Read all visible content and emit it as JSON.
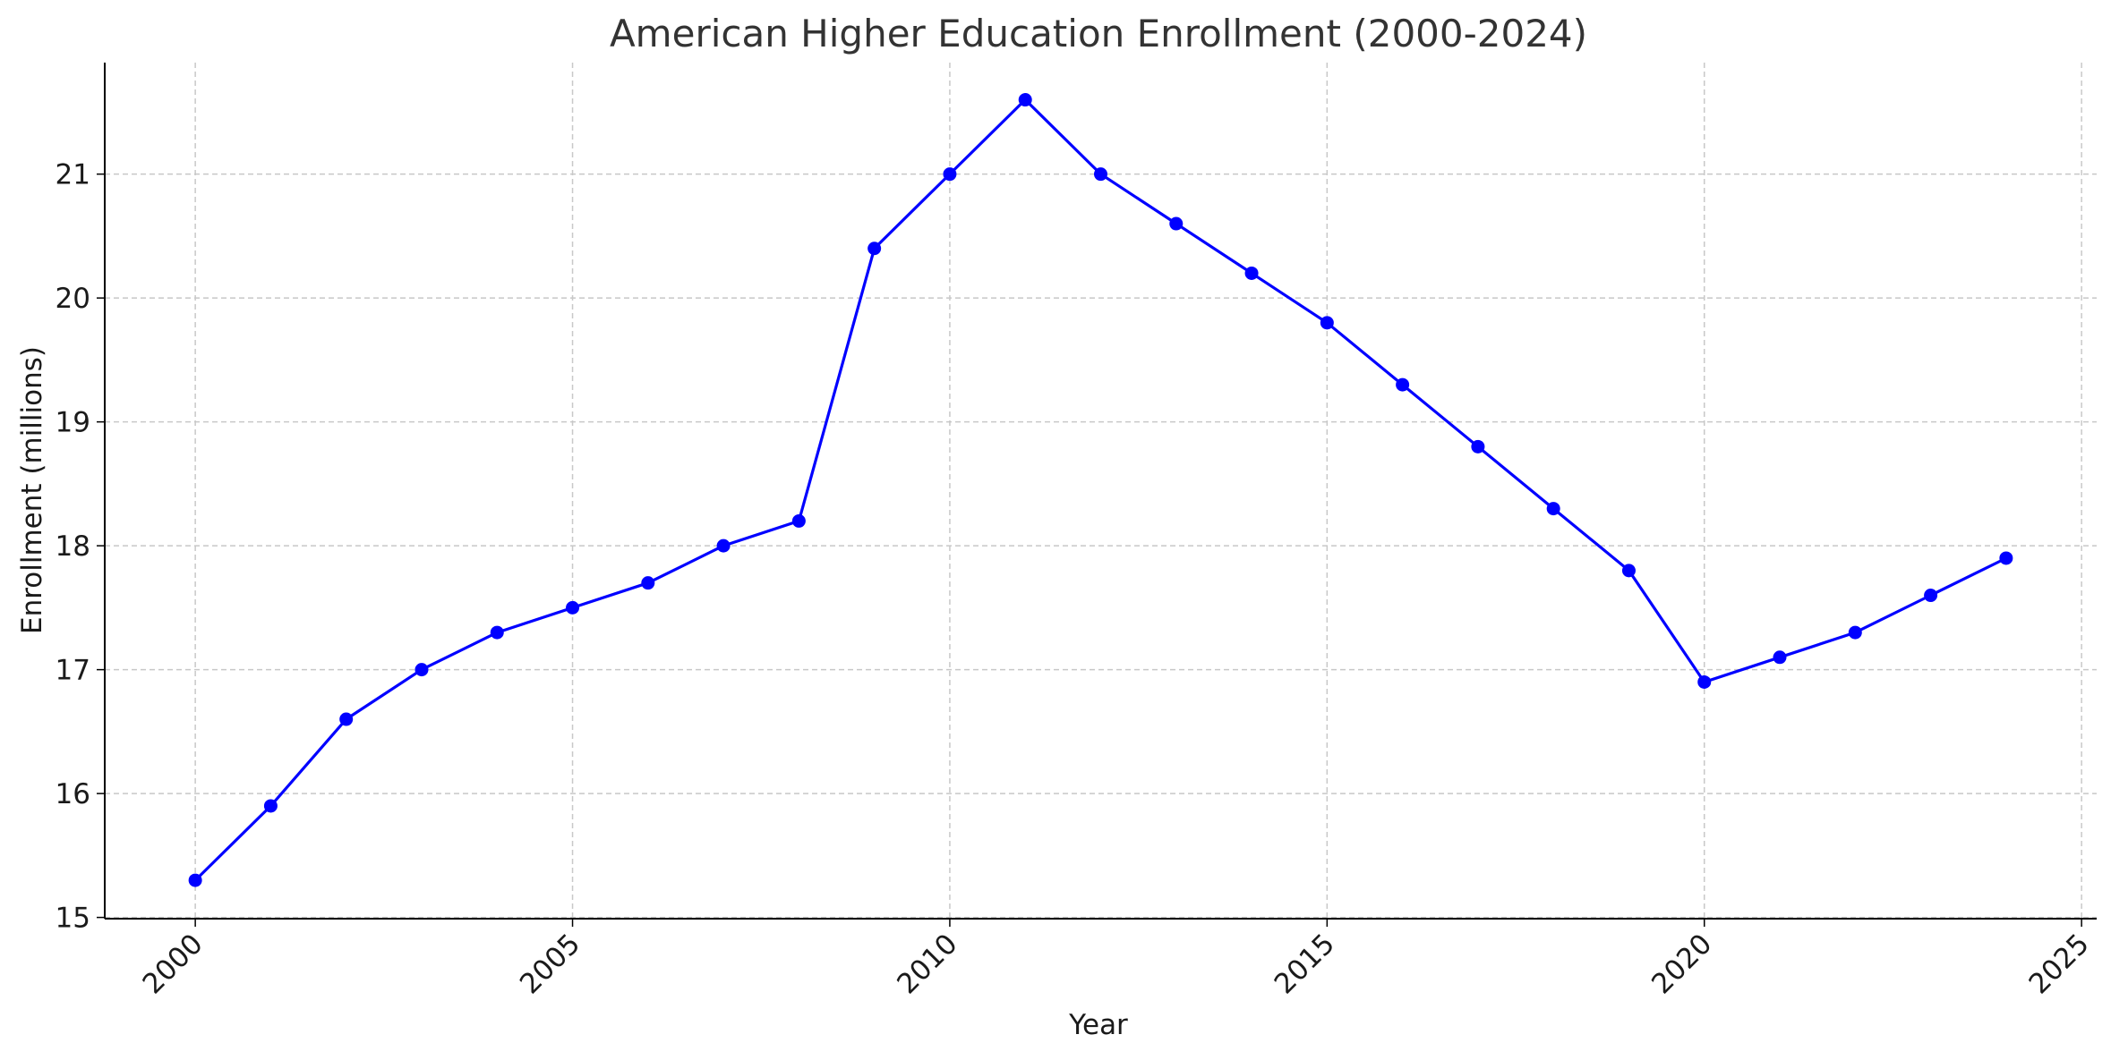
{
  "chart_data": {
    "type": "line",
    "title": "American Higher Education Enrollment (2000-2024)",
    "xlabel": "Year",
    "ylabel": "Enrollment (millions)",
    "x": [
      2000,
      2001,
      2002,
      2003,
      2004,
      2005,
      2006,
      2007,
      2008,
      2009,
      2010,
      2011,
      2012,
      2013,
      2014,
      2015,
      2016,
      2017,
      2018,
      2019,
      2020,
      2021,
      2022,
      2023,
      2024
    ],
    "series": [
      {
        "color": "#0000ff",
        "marker": "circle",
        "values": [
          15.3,
          15.9,
          16.6,
          17.0,
          17.3,
          17.5,
          17.7,
          18.0,
          18.2,
          20.4,
          21.0,
          21.6,
          21.0,
          20.6,
          20.2,
          19.8,
          19.3,
          18.8,
          18.3,
          17.8,
          16.9,
          17.1,
          17.3,
          17.6,
          17.9
        ]
      }
    ],
    "xlim": [
      1998.8,
      2025.2
    ],
    "ylim": [
      14.99,
      21.9
    ],
    "xticks": [
      2000,
      2005,
      2010,
      2015,
      2020,
      2025
    ],
    "xtick_labels": [
      "2000",
      "2005",
      "2010",
      "2015",
      "2020",
      "2025"
    ],
    "xtick_rotation": 45,
    "yticks": [
      15,
      16,
      17,
      18,
      19,
      20,
      21
    ],
    "ytick_labels": [
      "15",
      "16",
      "17",
      "18",
      "19",
      "20",
      "21"
    ],
    "grid": true,
    "grid_style": "dashed",
    "grid_color": "#c8c8c8",
    "axis_color": "#000000",
    "title_color": "#333333",
    "legend": false
  }
}
